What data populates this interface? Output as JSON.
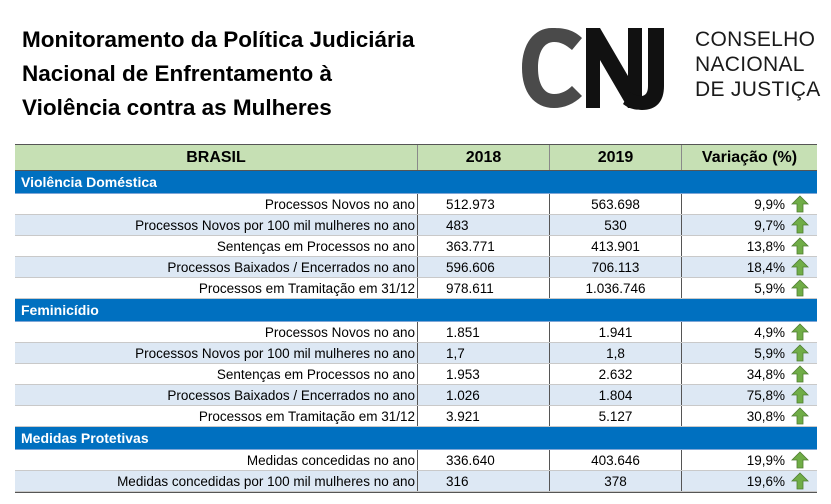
{
  "title_lines": [
    "Monitoramento da Política Judiciária",
    "Nacional de Enfrentamento à",
    "Violência contra as Mulheres"
  ],
  "logo": {
    "mark": "CNJ",
    "lines": [
      "CONSELHO",
      "NACIONAL",
      "DE JUSTIÇA"
    ]
  },
  "table": {
    "headers": [
      "BRASIL",
      "2018",
      "2019",
      "Variação (%)"
    ],
    "sections": [
      {
        "name": "Violência Doméstica",
        "rows": [
          {
            "label": "Processos Novos no ano",
            "y2018": "512.973",
            "y2019": "563.698",
            "var": "9,9%"
          },
          {
            "label": "Processos Novos por 100 mil mulheres no ano",
            "y2018": "483",
            "y2019": "530",
            "var": "9,7%"
          },
          {
            "label": "Sentenças em Processos no ano",
            "y2018": "363.771",
            "y2019": "413.901",
            "var": "13,8%"
          },
          {
            "label": "Processos Baixados / Encerrados no ano",
            "y2018": "596.606",
            "y2019": "706.113",
            "var": "18,4%"
          },
          {
            "label": "Processos em Tramitação em 31/12",
            "y2018": "978.611",
            "y2019": "1.036.746",
            "var": "5,9%"
          }
        ]
      },
      {
        "name": "Feminicídio",
        "rows": [
          {
            "label": "Processos Novos no ano",
            "y2018": "1.851",
            "y2019": "1.941",
            "var": "4,9%"
          },
          {
            "label": "Processos Novos por 100 mil mulheres no ano",
            "y2018": "1,7",
            "y2019": "1,8",
            "var": "5,9%"
          },
          {
            "label": "Sentenças em Processos no ano",
            "y2018": "1.953",
            "y2019": "2.632",
            "var": "34,8%"
          },
          {
            "label": "Processos Baixados / Encerrados no ano",
            "y2018": "1.026",
            "y2019": "1.804",
            "var": "75,8%"
          },
          {
            "label": "Processos em Tramitação em 31/12",
            "y2018": "3.921",
            "y2019": "5.127",
            "var": "30,8%"
          }
        ]
      },
      {
        "name": "Medidas Protetivas",
        "rows": [
          {
            "label": "Medidas concedidas no ano",
            "y2018": "336.640",
            "y2019": "403.646",
            "var": "19,9%"
          },
          {
            "label": "Medidas concedidas por 100 mil mulheres no ano",
            "y2018": "316",
            "y2019": "378",
            "var": "19,6%"
          }
        ]
      }
    ]
  },
  "colors": {
    "header_bg": "#c6e0b4",
    "section_bg": "#0070c0",
    "alt_row_bg": "#dde8f4",
    "arrow_green": "#70ad47"
  },
  "icons": {
    "trend": "arrow-up-icon"
  }
}
